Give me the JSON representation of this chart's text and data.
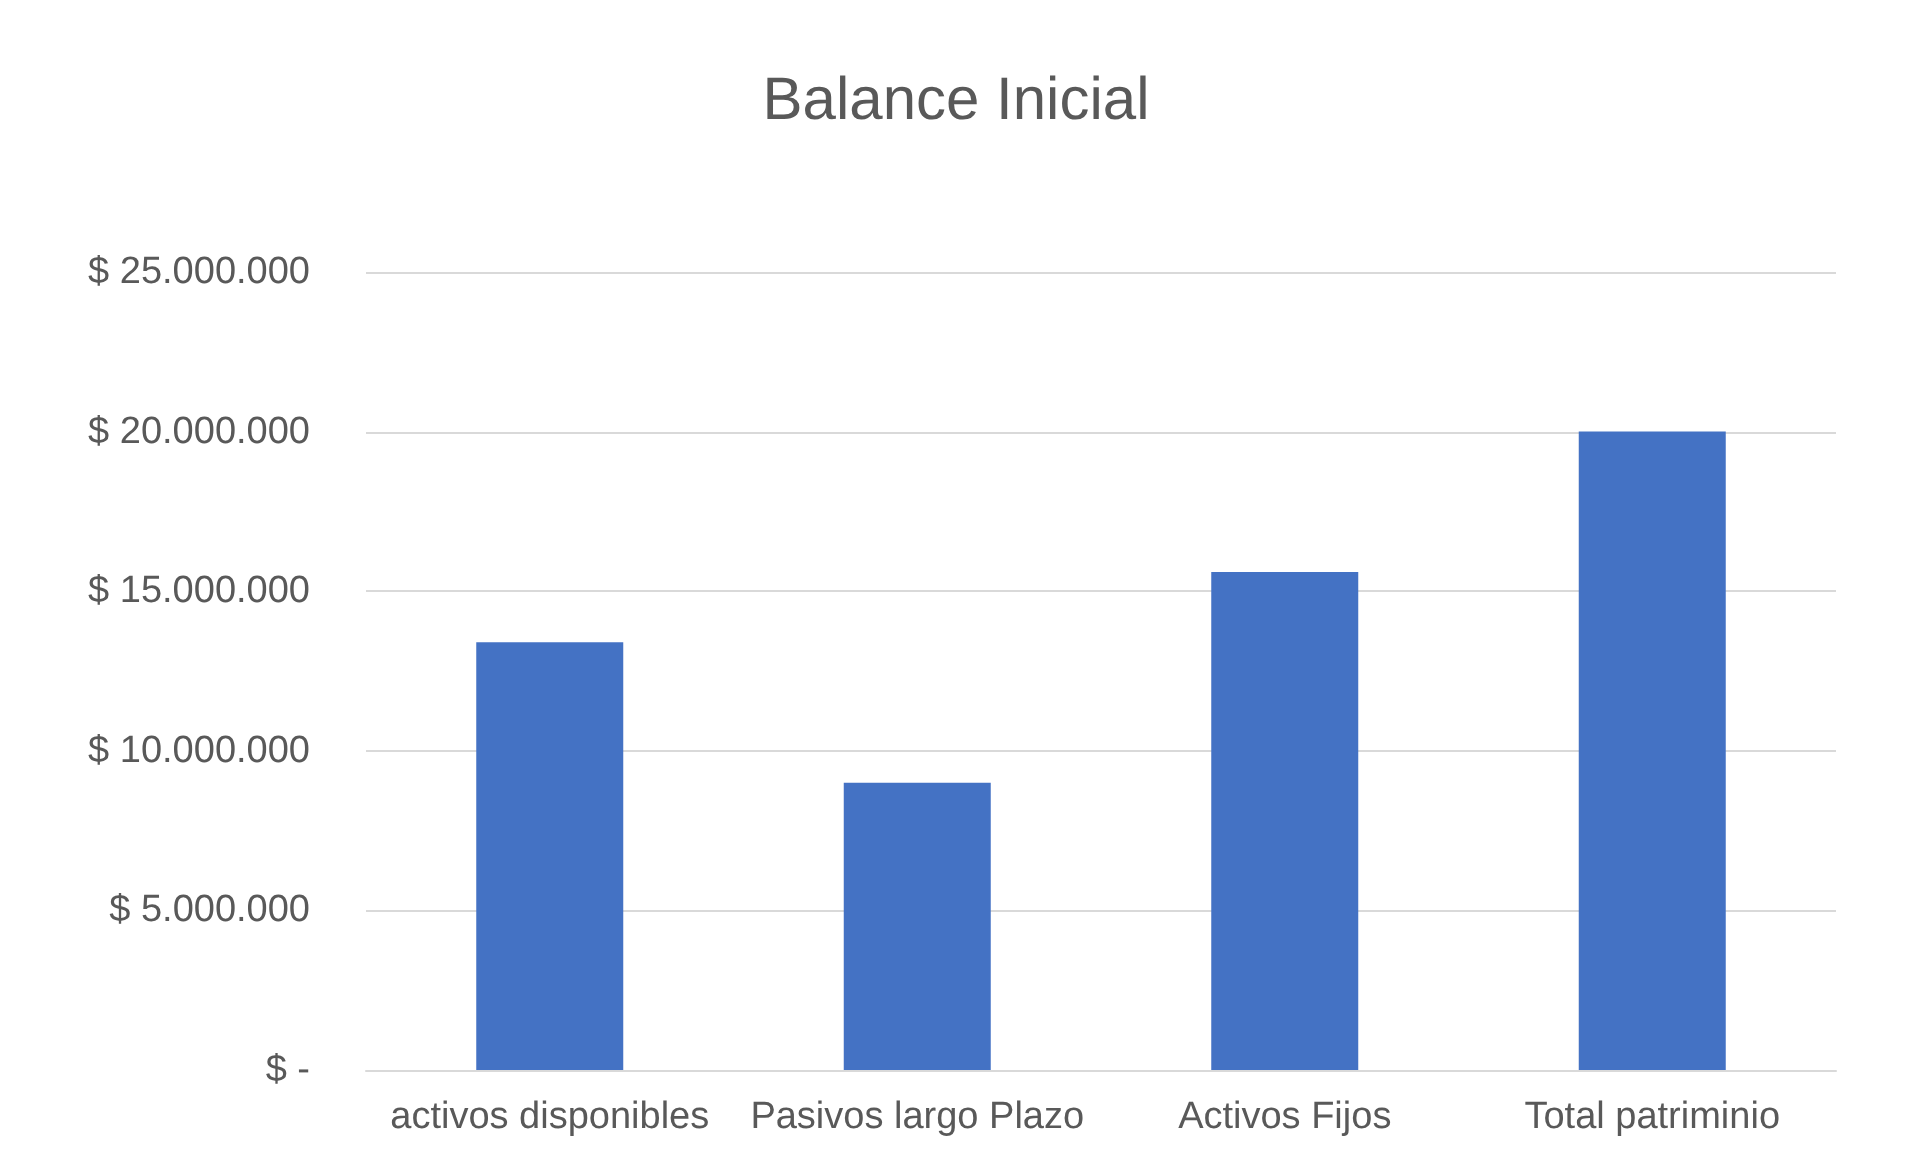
{
  "chart_data": {
    "type": "bar",
    "title": "Balance Inicial",
    "categories": [
      "activos disponibles",
      "Pasivos largo Plazo",
      "Activos Fijos",
      "Total patriminio"
    ],
    "values": [
      13400000,
      9000000,
      15600000,
      20000000
    ],
    "color": "#4472c4",
    "ylim": [
      0,
      25000000
    ],
    "yticks": [
      {
        "value": 0,
        "label": "$ -"
      },
      {
        "value": 5000000,
        "label": "$ 5.000.000"
      },
      {
        "value": 10000000,
        "label": "$ 10.000.000"
      },
      {
        "value": 15000000,
        "label": "$ 15.000.000"
      },
      {
        "value": 20000000,
        "label": "$ 20.000.000"
      },
      {
        "value": 25000000,
        "label": "$ 25.000.000"
      }
    ],
    "grid": "y"
  }
}
